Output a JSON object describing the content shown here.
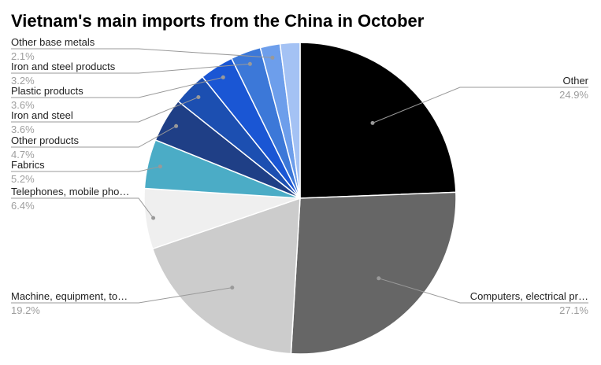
{
  "chart_data": {
    "type": "pie",
    "title": "Vietnam's main imports from the China in October",
    "slices": [
      {
        "label": "Other",
        "pct_text": "24.9%",
        "value": 24.9,
        "color": "#000000"
      },
      {
        "label": "Computers, electrical pr…",
        "pct_text": "27.1%",
        "value": 27.1,
        "color": "#666666"
      },
      {
        "label": "Machine, equipment, to…",
        "pct_text": "19.2%",
        "value": 19.2,
        "color": "#cccccc"
      },
      {
        "label": "Telephones, mobile pho…",
        "pct_text": "6.4%",
        "value": 6.4,
        "color": "#efefef"
      },
      {
        "label": "Fabrics",
        "pct_text": "5.2%",
        "value": 5.2,
        "color": "#4bacc6"
      },
      {
        "label": "Other products",
        "pct_text": "4.7%",
        "value": 4.7,
        "color": "#1f3f86"
      },
      {
        "label": "Iron and steel",
        "pct_text": "3.6%",
        "value": 3.6,
        "color": "#1c4fb1"
      },
      {
        "label": "Plastic products",
        "pct_text": "3.6%",
        "value": 3.6,
        "color": "#1a56d4"
      },
      {
        "label": "Iron and steel products",
        "pct_text": "3.2%",
        "value": 3.2,
        "color": "#3c78d8"
      },
      {
        "label": "Other base metals",
        "pct_text": "2.1%",
        "value": 2.1,
        "color": "#6d9eeb"
      },
      {
        "label": "",
        "pct_text": "",
        "value": 2.1,
        "color": "#a4c2f4"
      }
    ],
    "legend": "none",
    "labels_position": "outside-with-leaders"
  }
}
